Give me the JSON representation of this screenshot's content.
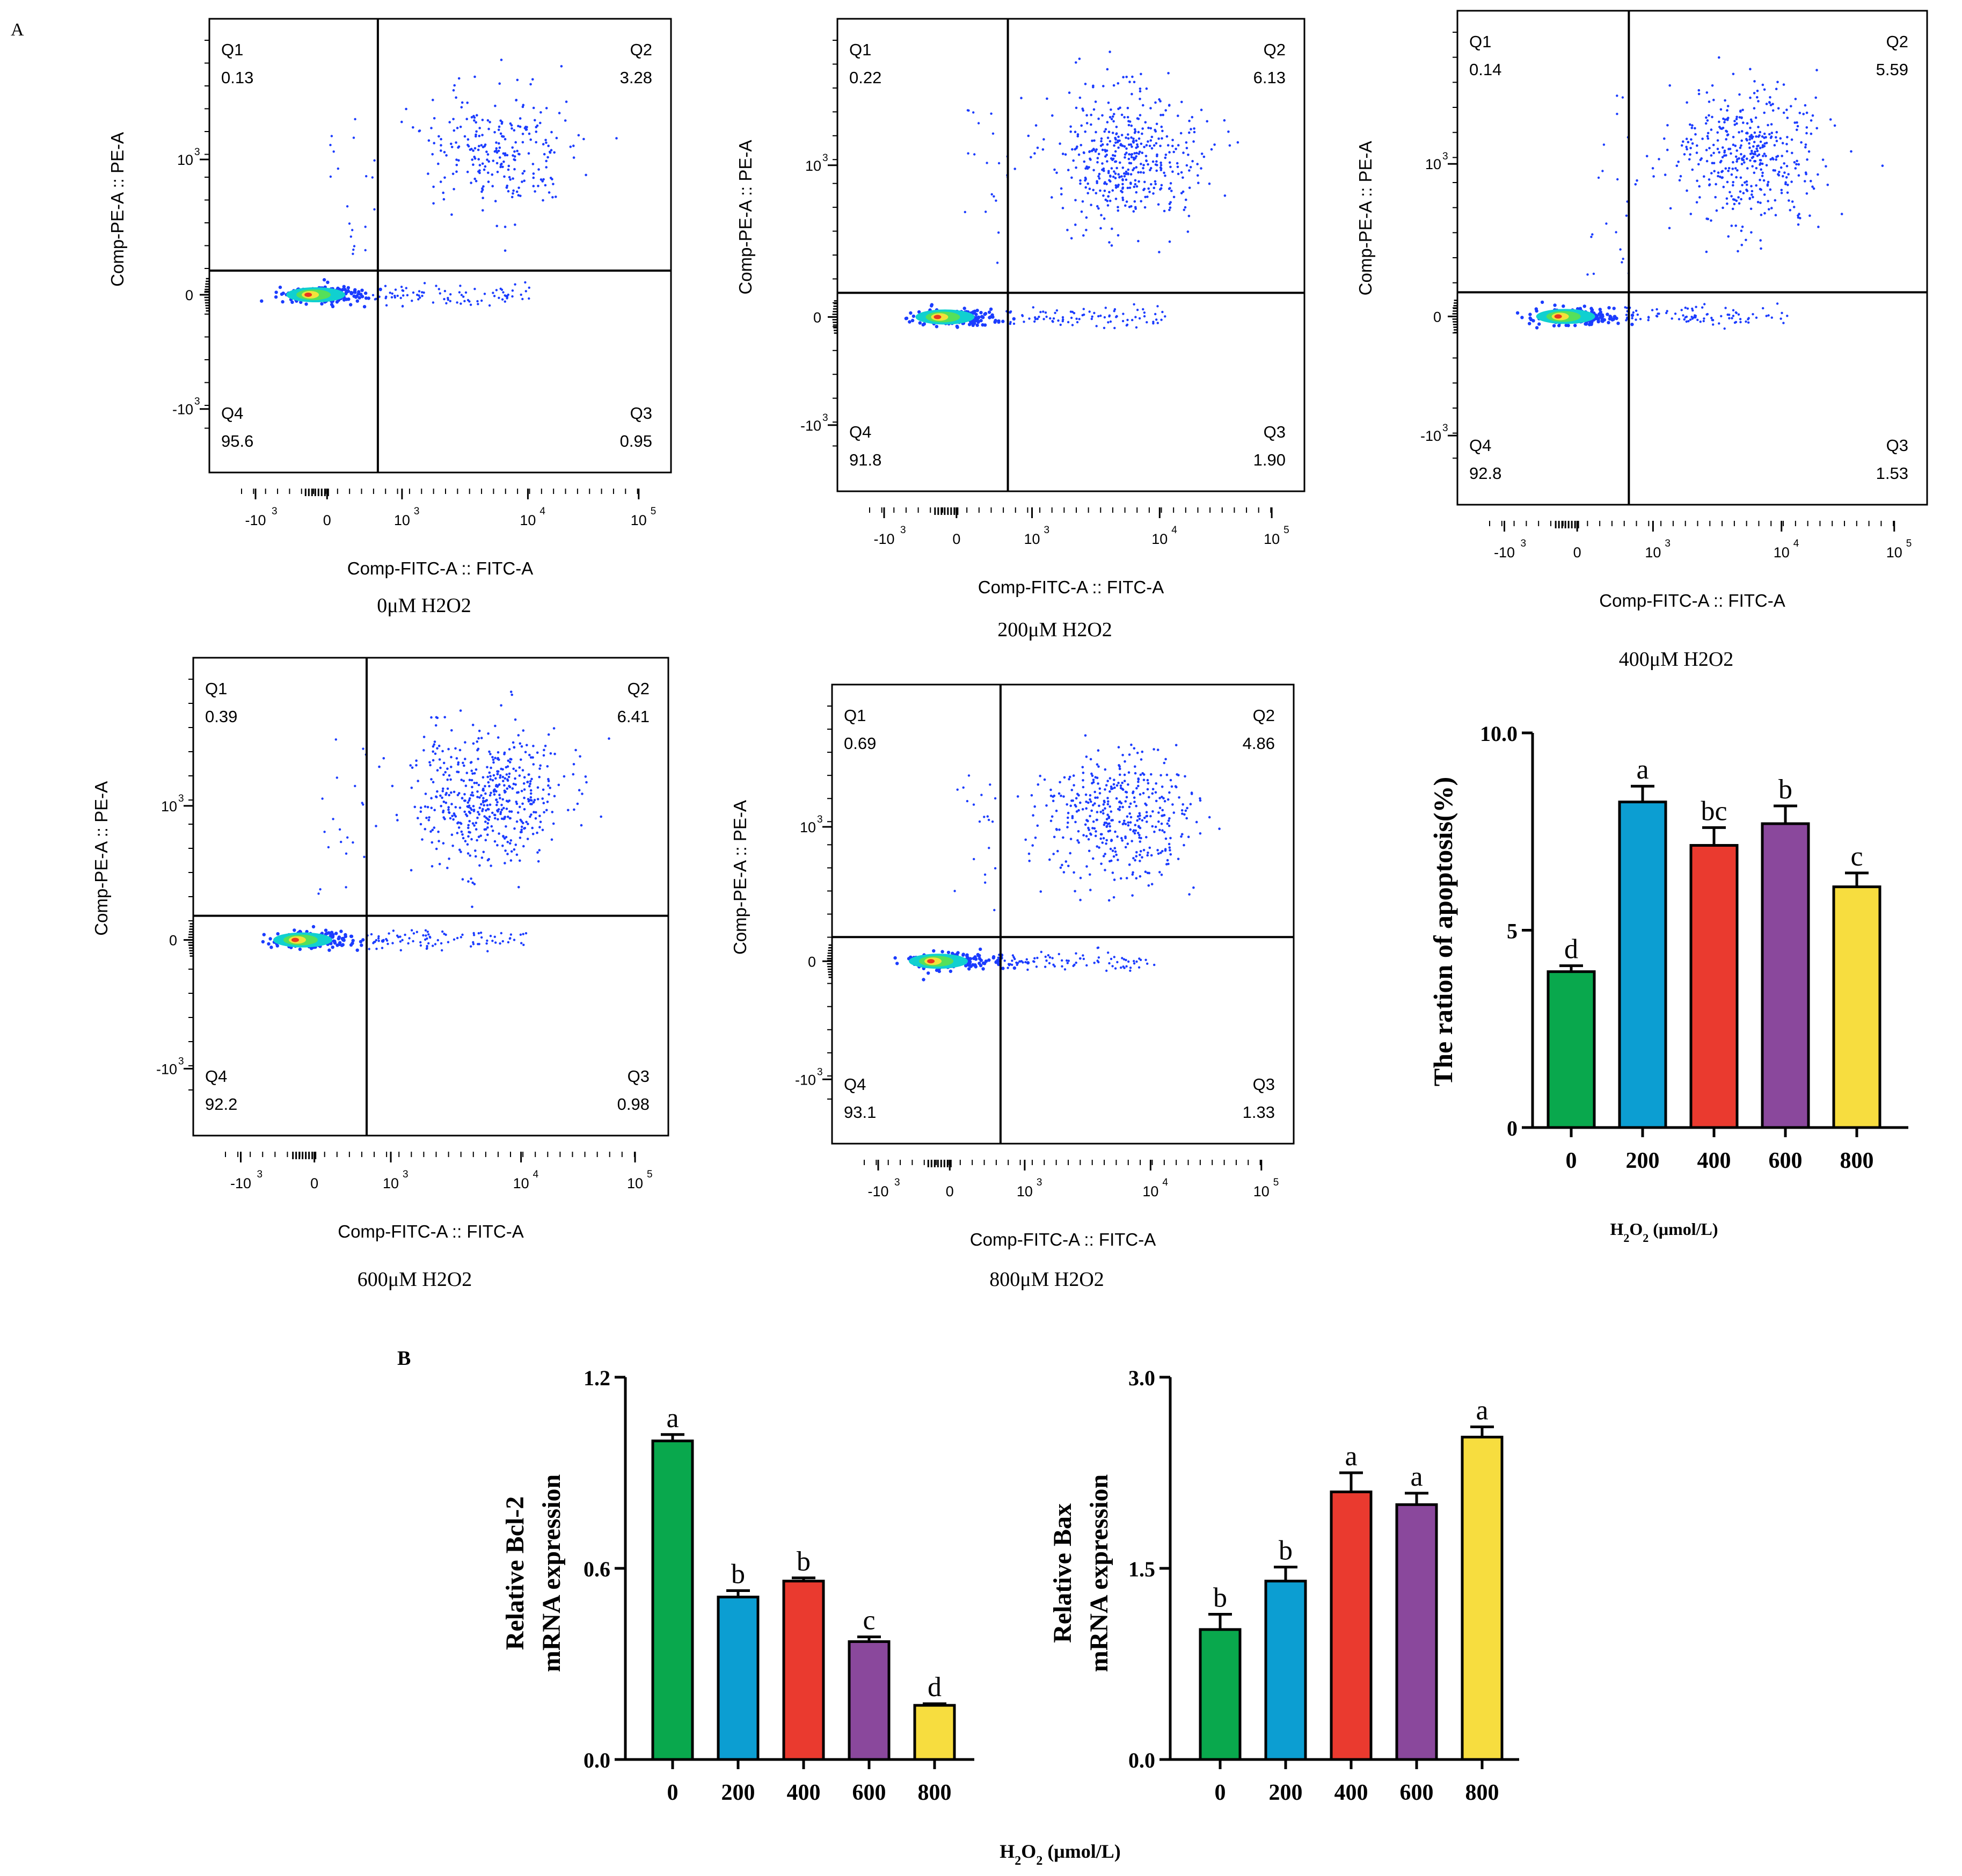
{
  "panel_labels": {
    "a": "A",
    "b": "B"
  },
  "colors": {
    "bars": [
      "#09a84d",
      "#0c9ed2",
      "#ea3a2f",
      "#8a489c",
      "#f7dd3f"
    ],
    "dots": "#1b3cff",
    "axis": "#000000"
  },
  "chart_data": [
    {
      "type": "scatter",
      "subtype": "flow-cytometry-quadrant",
      "caption": "0μM H2O2",
      "xlabel": "Comp-FITC-A :: FITC-A",
      "ylabel": "Comp-PE-A :: PE-A",
      "x_tick_labels": [
        "-10",
        "0",
        "10",
        "10",
        "10"
      ],
      "x_tick_exponents": [
        "3",
        "",
        "3",
        "4",
        "5"
      ],
      "y_tick_labels": [
        "10",
        "0",
        "-10"
      ],
      "y_tick_exponents": [
        "3",
        "",
        "3"
      ],
      "quadrants": [
        {
          "name": "Q1",
          "value": "0.13"
        },
        {
          "name": "Q2",
          "value": "3.28"
        },
        {
          "name": "Q3",
          "value": "0.95"
        },
        {
          "name": "Q4",
          "value": "95.6"
        }
      ]
    },
    {
      "type": "scatter",
      "subtype": "flow-cytometry-quadrant",
      "caption": "200μM H2O2",
      "xlabel": "Comp-FITC-A :: FITC-A",
      "ylabel": "Comp-PE-A :: PE-A",
      "x_tick_labels": [
        "-10",
        "0",
        "10",
        "10",
        "10"
      ],
      "x_tick_exponents": [
        "3",
        "",
        "3",
        "4",
        "5"
      ],
      "y_tick_labels": [
        "10",
        "0",
        "-10"
      ],
      "y_tick_exponents": [
        "3",
        "",
        "3"
      ],
      "quadrants": [
        {
          "name": "Q1",
          "value": "0.22"
        },
        {
          "name": "Q2",
          "value": "6.13"
        },
        {
          "name": "Q3",
          "value": "1.90"
        },
        {
          "name": "Q4",
          "value": "91.8"
        }
      ]
    },
    {
      "type": "scatter",
      "subtype": "flow-cytometry-quadrant",
      "caption": "400μM H2O2",
      "xlabel": "Comp-FITC-A :: FITC-A",
      "ylabel": "Comp-PE-A :: PE-A",
      "x_tick_labels": [
        "-10",
        "0",
        "10",
        "10",
        "10"
      ],
      "x_tick_exponents": [
        "3",
        "",
        "3",
        "4",
        "5"
      ],
      "y_tick_labels": [
        "10",
        "0",
        "-10"
      ],
      "y_tick_exponents": [
        "3",
        "",
        "3"
      ],
      "quadrants": [
        {
          "name": "Q1",
          "value": "0.14"
        },
        {
          "name": "Q2",
          "value": "5.59"
        },
        {
          "name": "Q3",
          "value": "1.53"
        },
        {
          "name": "Q4",
          "value": "92.8"
        }
      ]
    },
    {
      "type": "scatter",
      "subtype": "flow-cytometry-quadrant",
      "caption": "600μM H2O2",
      "xlabel": "Comp-FITC-A :: FITC-A",
      "ylabel": "Comp-PE-A :: PE-A",
      "x_tick_labels": [
        "-10",
        "0",
        "10",
        "10",
        "10"
      ],
      "x_tick_exponents": [
        "3",
        "",
        "3",
        "4",
        "5"
      ],
      "y_tick_labels": [
        "10",
        "0",
        "-10"
      ],
      "y_tick_exponents": [
        "3",
        "",
        "3"
      ],
      "quadrants": [
        {
          "name": "Q1",
          "value": "0.39"
        },
        {
          "name": "Q2",
          "value": "6.41"
        },
        {
          "name": "Q3",
          "value": "0.98"
        },
        {
          "name": "Q4",
          "value": "92.2"
        }
      ]
    },
    {
      "type": "scatter",
      "subtype": "flow-cytometry-quadrant",
      "caption": "800μM H2O2",
      "xlabel": "Comp-FITC-A :: FITC-A",
      "ylabel": "Comp-PE-A :: PE-A",
      "x_tick_labels": [
        "-10",
        "0",
        "10",
        "10",
        "10"
      ],
      "x_tick_exponents": [
        "3",
        "",
        "3",
        "4",
        "5"
      ],
      "y_tick_labels": [
        "10",
        "0",
        "-10"
      ],
      "y_tick_exponents": [
        "3",
        "",
        "3"
      ],
      "quadrants": [
        {
          "name": "Q1",
          "value": "0.69"
        },
        {
          "name": "Q2",
          "value": "4.86"
        },
        {
          "name": "Q3",
          "value": "1.33"
        },
        {
          "name": "Q4",
          "value": "93.1"
        }
      ]
    },
    {
      "type": "bar",
      "title": "",
      "ylabel": "The ration of apoptosis(%)",
      "xlabel_parts": [
        "H",
        "2",
        "O",
        "2",
        " (μmol/L)"
      ],
      "categories": [
        "0",
        "200",
        "400",
        "600",
        "800"
      ],
      "values": [
        3.95,
        8.25,
        7.15,
        7.7,
        6.1
      ],
      "errors": [
        0.15,
        0.4,
        0.45,
        0.45,
        0.35
      ],
      "letters": [
        "d",
        "a",
        "bc",
        "b",
        "c"
      ],
      "ylim": [
        0,
        10
      ],
      "yticks": [
        "0",
        "5",
        "10.0"
      ]
    },
    {
      "type": "bar",
      "title": "",
      "ylabel_lines": [
        "Relative Bcl-2",
        "mRNA expression"
      ],
      "categories": [
        "0",
        "200",
        "400",
        "600",
        "800"
      ],
      "values": [
        1.0,
        0.51,
        0.56,
        0.37,
        0.17
      ],
      "errors": [
        0.02,
        0.02,
        0.01,
        0.015,
        0.005
      ],
      "letters": [
        "a",
        "b",
        "b",
        "c",
        "d"
      ],
      "ylim": [
        0,
        1.2
      ],
      "yticks": [
        "0.0",
        "0.6",
        "1.2"
      ]
    },
    {
      "type": "bar",
      "title": "",
      "ylabel_lines": [
        "Relative Bax",
        "mRNA expression"
      ],
      "categories": [
        "0",
        "200",
        "400",
        "600",
        "800"
      ],
      "values": [
        1.02,
        1.4,
        2.1,
        2.0,
        2.53
      ],
      "errors": [
        0.12,
        0.11,
        0.15,
        0.09,
        0.08
      ],
      "letters": [
        "b",
        "b",
        "a",
        "a",
        "a"
      ],
      "ylim": [
        0,
        3.0
      ],
      "yticks": [
        "0.0",
        "1.5",
        "3.0"
      ]
    }
  ],
  "shared_xlabel_b_parts": [
    "H",
    "2",
    "O",
    "2",
    " (μmol/L)"
  ]
}
